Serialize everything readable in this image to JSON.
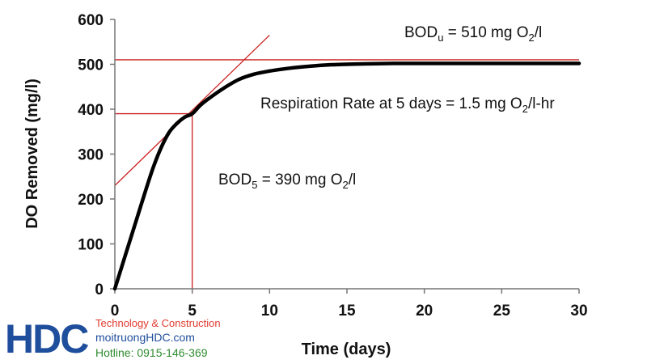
{
  "chart_data": {
    "type": "line",
    "title": "",
    "xlabel": "Time (days)",
    "ylabel": "DO Removed  (mg/l)",
    "xlim": [
      0,
      30
    ],
    "ylim": [
      0,
      600
    ],
    "x_ticks": [
      "0",
      "5",
      "10",
      "15",
      "20",
      "25",
      "30"
    ],
    "y_ticks": [
      "0",
      "100",
      "200",
      "300",
      "400",
      "500",
      "600"
    ],
    "grid": false,
    "legend": "none",
    "series": [
      {
        "color": "#000000",
        "x": [
          0,
          0.5,
          1,
          1.5,
          2,
          2.5,
          3,
          3.5,
          4,
          4.5,
          5,
          5.5,
          6,
          7,
          8,
          9,
          10,
          11,
          12,
          14,
          16,
          18,
          20,
          25,
          30
        ],
        "y": [
          0,
          55,
          110,
          165,
          220,
          272,
          315,
          348,
          368,
          382,
          390,
          408,
          422,
          446,
          466,
          478,
          485,
          490,
          494,
          499,
          501,
          502,
          502,
          502,
          502
        ]
      }
    ],
    "reference_lines": {
      "color": "#cc2020",
      "bod_u_value": 510,
      "bod_5_value": 390,
      "bod_5_day": 5,
      "tangent": {
        "x": [
          0,
          10
        ],
        "y": [
          230,
          565
        ]
      }
    },
    "annotations": {
      "bod_u": {
        "main": "BOD",
        "sub": "u",
        "rest1": " = 510 mg O",
        "sub2": "2",
        "rest2": "/l"
      },
      "respiration": {
        "main": "Respiration Rate at 5 days   = 1.5 mg O",
        "sub": "2",
        "rest": "/l-hr"
      },
      "bod_5": {
        "main": "BOD",
        "sub": "5",
        "rest1": " = 390 mg O",
        "sub2": "2",
        "rest2": "/l"
      }
    }
  },
  "logo": {
    "mark": "HDC",
    "tagline": "Technology & Construction",
    "website": "moitruongHDC.com",
    "hotline": "Hotline: 0915-146-369"
  }
}
